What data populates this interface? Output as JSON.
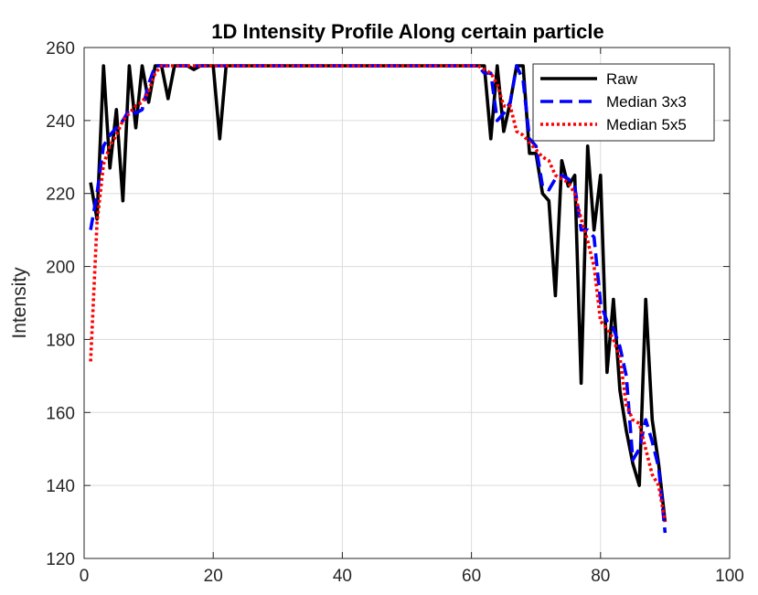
{
  "chart_data": {
    "type": "line",
    "title": "1D Intensity Profile Along certain particle",
    "xlabel": "",
    "ylabel": "Intensity",
    "xlim": [
      0,
      100
    ],
    "ylim": [
      120,
      260
    ],
    "xticks": [
      0,
      20,
      40,
      60,
      80,
      100
    ],
    "yticks": [
      120,
      140,
      160,
      180,
      200,
      220,
      240,
      260
    ],
    "grid": true,
    "legend_position": "top-right",
    "x": [
      1,
      2,
      3,
      4,
      5,
      6,
      7,
      8,
      9,
      10,
      11,
      12,
      13,
      14,
      15,
      16,
      17,
      18,
      19,
      20,
      21,
      22,
      23,
      24,
      25,
      26,
      27,
      28,
      29,
      30,
      31,
      32,
      33,
      34,
      35,
      36,
      37,
      38,
      39,
      40,
      41,
      42,
      43,
      44,
      45,
      46,
      47,
      48,
      49,
      50,
      51,
      52,
      53,
      54,
      55,
      56,
      57,
      58,
      59,
      60,
      61,
      62,
      63,
      64,
      65,
      66,
      67,
      68,
      69,
      70,
      71,
      72,
      73,
      74,
      75,
      76,
      77,
      78,
      79,
      80,
      81,
      82,
      83,
      84,
      85,
      86,
      87,
      88,
      89,
      90
    ],
    "series": [
      {
        "name": "Raw",
        "color": "#000000",
        "style": "solid",
        "values": [
          223,
          213,
          255,
          227,
          243,
          218,
          255,
          238,
          255,
          245,
          255,
          255,
          246,
          255,
          255,
          255,
          254,
          255,
          255,
          255,
          235,
          255,
          255,
          255,
          255,
          255,
          255,
          255,
          255,
          255,
          255,
          255,
          255,
          255,
          255,
          255,
          255,
          255,
          255,
          255,
          255,
          255,
          255,
          255,
          255,
          255,
          255,
          255,
          255,
          255,
          255,
          255,
          255,
          255,
          255,
          255,
          255,
          255,
          255,
          255,
          255,
          255,
          235,
          255,
          237,
          245,
          255,
          255,
          231,
          231,
          220,
          218,
          192,
          229,
          222,
          225,
          168,
          233,
          210,
          225,
          171,
          191,
          166,
          155,
          146,
          140,
          191,
          158,
          146,
          130
        ]
      },
      {
        "name": "Median 3x3",
        "color": "#0000ff",
        "style": "dashed",
        "values": [
          210,
          220,
          233,
          236,
          238,
          240,
          243,
          242,
          243,
          250,
          255,
          255,
          255,
          255,
          255,
          255,
          255,
          255,
          255,
          255,
          255,
          255,
          255,
          255,
          255,
          255,
          255,
          255,
          255,
          255,
          255,
          255,
          255,
          255,
          255,
          255,
          255,
          255,
          255,
          255,
          255,
          255,
          255,
          255,
          255,
          255,
          255,
          255,
          255,
          255,
          255,
          255,
          255,
          255,
          255,
          255,
          255,
          255,
          255,
          255,
          255,
          253,
          253,
          240,
          242,
          245,
          255,
          251,
          235,
          233,
          222,
          221,
          224,
          225,
          224,
          222,
          210,
          210,
          208,
          190,
          185,
          183,
          178,
          170,
          147,
          150,
          158,
          152,
          145,
          127
        ]
      },
      {
        "name": "Median 5x5",
        "color": "#ff0000",
        "style": "dotted",
        "values": [
          174,
          212,
          228,
          233,
          236,
          240,
          242,
          244,
          245,
          248,
          253,
          255,
          255,
          255,
          255,
          255,
          255,
          255,
          255,
          255,
          255,
          255,
          255,
          255,
          255,
          255,
          255,
          255,
          255,
          255,
          255,
          255,
          255,
          255,
          255,
          255,
          255,
          255,
          255,
          255,
          255,
          255,
          255,
          255,
          255,
          255,
          255,
          255,
          255,
          255,
          255,
          255,
          255,
          255,
          255,
          255,
          255,
          255,
          255,
          255,
          255,
          254,
          253,
          250,
          244,
          244,
          237,
          236,
          234,
          232,
          230,
          229,
          225,
          224,
          223,
          220,
          213,
          207,
          200,
          185,
          183,
          180,
          175,
          162,
          158,
          157,
          150,
          143,
          140,
          130
        ]
      }
    ]
  }
}
